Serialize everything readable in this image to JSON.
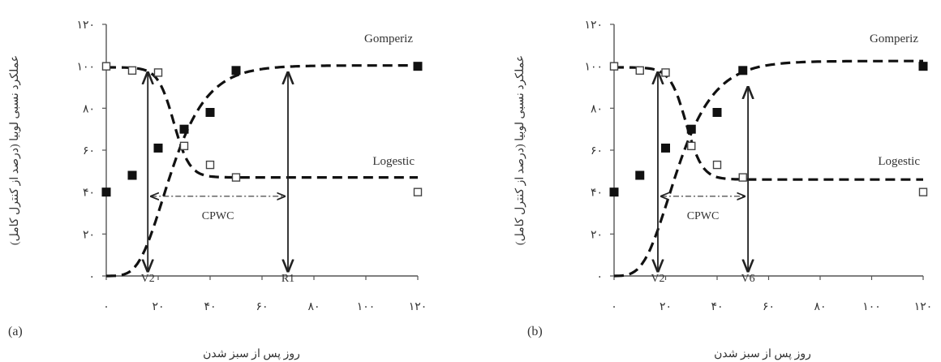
{
  "chart_data": [
    {
      "panel_label": "(a)",
      "type": "scatter",
      "ylabel": "عملکرد نسبی لوبیا (درصد از کنترل کامل)",
      "xlabel": "روز پس از سبز شدن",
      "x_tick_labels": [
        "۰",
        "۲۰",
        "۴۰",
        "۶۰",
        "۸۰",
        "۱۰۰",
        "۱۲۰"
      ],
      "y_tick_labels": [
        "۰",
        "۲۰",
        "۴۰",
        "۶۰",
        "۸۰",
        "۱۰۰",
        "۱۲۰"
      ],
      "xlim": [
        0,
        120
      ],
      "ylim": [
        0,
        120
      ],
      "series": [
        {
          "name": "Gomperiz",
          "marker": "filled-square",
          "points": [
            [
              0,
              40
            ],
            [
              10,
              48
            ],
            [
              20,
              61
            ],
            [
              30,
              70
            ],
            [
              40,
              78
            ],
            [
              50,
              98
            ],
            [
              120,
              100
            ]
          ],
          "curve": "gompertz",
          "fit": {
            "a": 100.4,
            "b": 21.8,
            "c": 2.6
          }
        },
        {
          "name": "Logestic",
          "marker": "open-square",
          "points": [
            [
              0,
              100
            ],
            [
              10,
              98
            ],
            [
              20,
              97
            ],
            [
              30,
              62
            ],
            [
              40,
              53
            ],
            [
              50,
              47
            ],
            [
              120,
              40
            ]
          ],
          "curve": "logistic",
          "fit": {
            "min": 47,
            "max": 99.5,
            "mid": 26,
            "k": 0.33
          }
        }
      ],
      "markers": [
        {
          "label": "V2",
          "x": 16,
          "y_top": 97,
          "y_bottom": 0
        },
        {
          "label": "R1",
          "x": 70,
          "y_top": 97,
          "y_bottom": 0
        }
      ],
      "cpwc": {
        "label": "CPWC",
        "x_start": 16,
        "x_end": 70,
        "y": 38
      }
    },
    {
      "panel_label": "(b)",
      "type": "scatter",
      "ylabel": "عملکرد نسبی لوبیا (درصد از کنترل کامل)",
      "xlabel": "روز پس از سبز شدن",
      "x_tick_labels": [
        "۰",
        "۲۰",
        "۴۰",
        "۶۰",
        "۸۰",
        "۱۰۰",
        "۱۲۰"
      ],
      "y_tick_labels": [
        "۰",
        "۲۰",
        "۴۰",
        "۶۰",
        "۸۰",
        "۱۰۰",
        "۱۲۰"
      ],
      "xlim": [
        0,
        120
      ],
      "ylim": [
        0,
        120
      ],
      "series": [
        {
          "name": "Gomperiz",
          "marker": "filled-square",
          "points": [
            [
              0,
              40
            ],
            [
              10,
              48
            ],
            [
              20,
              61
            ],
            [
              30,
              70
            ],
            [
              40,
              78
            ],
            [
              50,
              98
            ],
            [
              120,
              100
            ]
          ],
          "curve": "gompertz",
          "fit": {
            "a": 102.5,
            "b": 21.2,
            "c": 2.5
          }
        },
        {
          "name": "Logestic",
          "marker": "open-square",
          "points": [
            [
              0,
              100
            ],
            [
              10,
              98
            ],
            [
              20,
              97
            ],
            [
              30,
              62
            ],
            [
              40,
              53
            ],
            [
              50,
              47
            ],
            [
              120,
              40
            ]
          ],
          "curve": "logistic",
          "fit": {
            "min": 46,
            "max": 99.5,
            "mid": 28,
            "k": 0.32
          }
        }
      ],
      "markers": [
        {
          "label": "V2",
          "x": 17,
          "y_top": 97,
          "y_bottom": 0
        },
        {
          "label": "V6",
          "x": 52,
          "y_top": 90,
          "y_bottom": 0
        }
      ],
      "cpwc": {
        "label": "CPWC",
        "x_start": 17,
        "x_end": 52,
        "y": 38
      }
    }
  ]
}
